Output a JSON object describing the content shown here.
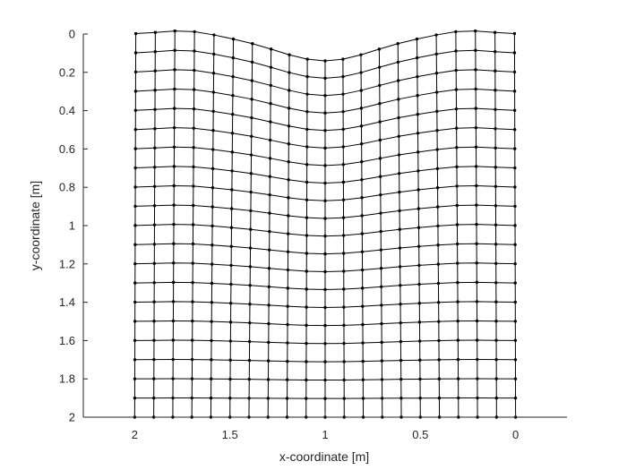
{
  "chart_data": {
    "type": "scatter",
    "title": "",
    "xlabel": "x-coordinate [m]",
    "ylabel": "y-coordinate [m]",
    "xlim": [
      2.27,
      -0.27
    ],
    "ylim": [
      0,
      2
    ],
    "x_reversed": true,
    "y_reversed": true,
    "grid": false,
    "xticks": [
      2,
      1.5,
      1,
      0.5,
      0
    ],
    "xtick_labels": [
      "2",
      "1.5",
      "1",
      "0.5",
      "0"
    ],
    "yticks": [
      0,
      0.2,
      0.4,
      0.6,
      0.8,
      1,
      1.2,
      1.4,
      1.6,
      1.8,
      2
    ],
    "ytick_labels": [
      "0",
      "0.2",
      "0.4",
      "0.6",
      "0.8",
      "1",
      "1.2",
      "1.4",
      "1.6",
      "1.8",
      "2"
    ],
    "mesh": {
      "description_of_values": "deformed 21x21 node mesh over a 2 m x 2 m domain, nodes joined by line segments along rows and columns",
      "columns": 21,
      "rows": 21,
      "x_nominal": [
        2,
        1.9,
        1.8,
        1.7,
        1.6,
        1.5,
        1.4,
        1.3,
        1.2,
        1.1,
        1.0,
        0.9,
        0.8,
        0.7,
        0.6,
        0.5,
        0.4,
        0.3,
        0.2,
        0.1,
        0
      ],
      "y_nominal": [
        0,
        0.1,
        0.2,
        0.3,
        0.4,
        0.5,
        0.6,
        0.7,
        0.8,
        0.9,
        1.0,
        1.1,
        1.2,
        1.3,
        1.4,
        1.5,
        1.6,
        1.7,
        1.8,
        1.9,
        2.0
      ],
      "top_surface_settlement_center": 0.14,
      "top_surface_heave_near_edges": -0.02,
      "bottom_edge_displacement": 0,
      "max_horizontal_shift": 0.04
    },
    "line_color": "#000000",
    "marker": "dot"
  }
}
